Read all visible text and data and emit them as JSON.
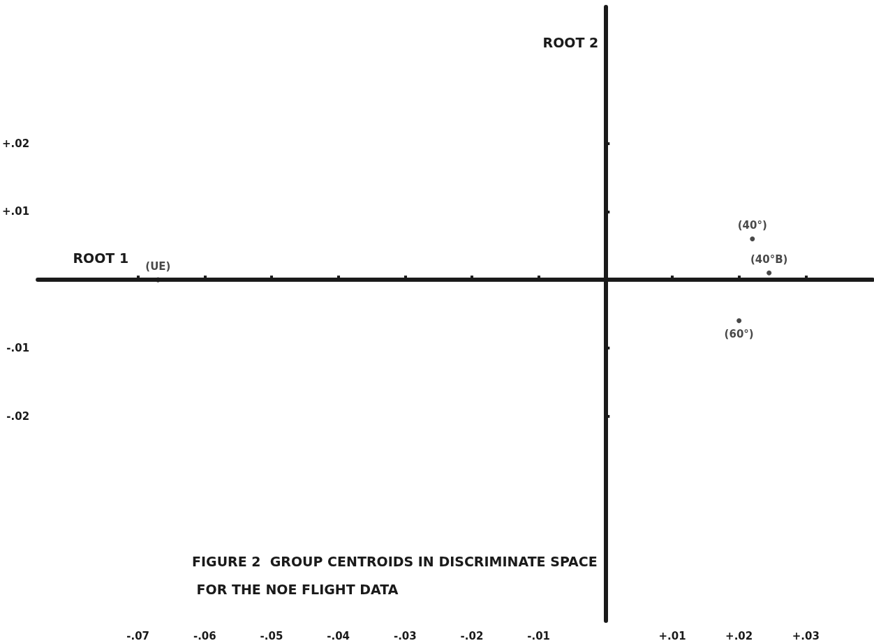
{
  "chart_data": {
    "type": "scatter",
    "title": "FIGURE 2  GROUP CENTROIDS IN DISCRIMINATE SPACE FOR THE NOE FLIGHT DATA",
    "xlabel": "ROOT 1",
    "ylabel": "ROOT 2",
    "x": [
      -0.067,
      0.022,
      0.0245,
      0.02
    ],
    "values": [
      0,
      0.006,
      0.001,
      -0.006
    ],
    "color": "#1a1a1a",
    "marker": "circle",
    "grid": false,
    "xlim": [
      -0.085,
      0.04
    ],
    "ylim": [
      -0.05,
      0.04
    ],
    "xticks": [
      {
        "value": -0.07,
        "label": "-.07"
      },
      {
        "value": -0.06,
        "label": "-.06"
      },
      {
        "value": -0.05,
        "label": "-.05"
      },
      {
        "value": -0.04,
        "label": "-.04"
      },
      {
        "value": -0.03,
        "label": "-.03"
      },
      {
        "value": -0.02,
        "label": "-.02"
      },
      {
        "value": -0.01,
        "label": "-.01"
      },
      {
        "value": 0.01,
        "label": "+.01"
      },
      {
        "value": 0.02,
        "label": "+.02"
      },
      {
        "value": 0.03,
        "label": "+.03"
      }
    ],
    "yticks": [
      {
        "value": -0.02,
        "label": "-.02"
      },
      {
        "value": -0.01,
        "label": "-.01"
      },
      {
        "value": 0.01,
        "label": "+.01"
      },
      {
        "value": 0.02,
        "label": "+.02"
      }
    ],
    "annotations": [
      {
        "text": "(UE)",
        "x": -0.067,
        "y": 0
      },
      {
        "text": "(40°)",
        "x": 0.022,
        "y": 0.006
      },
      {
        "text": "(40°B)",
        "x": 0.0245,
        "y": 0.001
      },
      {
        "text": "(60°)",
        "x": 0.02,
        "y": -0.006
      }
    ]
  }
}
